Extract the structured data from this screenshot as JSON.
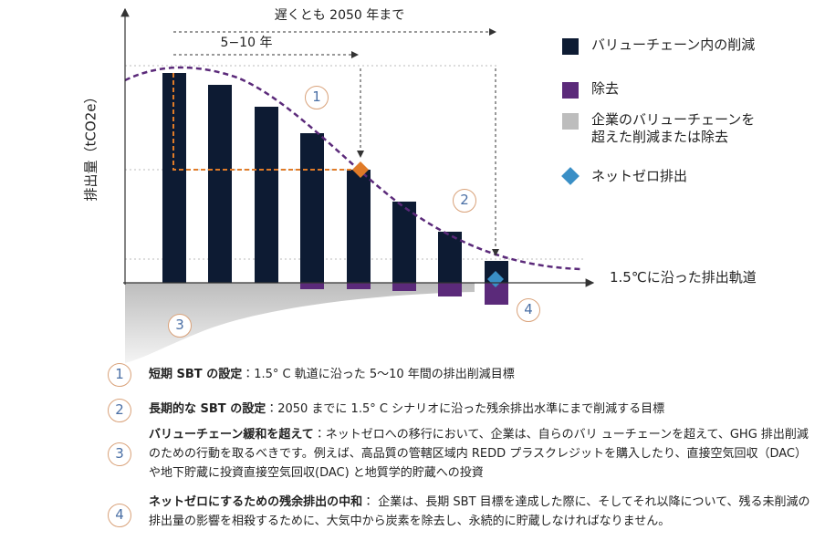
{
  "chart": {
    "y_axis_label": "排出量（tCO2e）",
    "x_axis_label": "1.5℃に沿った排出軌道",
    "annotations": {
      "by_2050": "遅くとも 2050 年まで",
      "five_to_ten": "5−10 年"
    },
    "markers": [
      "1",
      "2",
      "3",
      "4"
    ]
  },
  "legend": [
    {
      "label": "バリューチェーン内の削減"
    },
    {
      "label": "除去"
    },
    {
      "label": "企業のバリューチェーンを超えた削減または除去"
    },
    {
      "label": "ネットゼロ排出"
    }
  ],
  "notes": [
    {
      "number": "1",
      "title": "短期 SBT の設定",
      "text": "：1.5° C 軌道に沿った 5～10 年間の排出削減目標"
    },
    {
      "number": "2",
      "title": "長期的な SBT の設定",
      "text": "：2050 までに 1.5° C シナリオに沿った残余排出水準にまで削減する目標"
    },
    {
      "number": "3",
      "title": "バリューチェーン緩和を超えて",
      "text": "：ネットゼロへの移行において、企業は、自らのバリ ューチェーンを超えて、GHG 排出削減のための行動を取るべきです。例えば、高品質の管轄区域内 REDD プラスクレジットを購入したり、直接空気回収（DAC）や地下貯蔵に投資直接空気回収(DAC) と地質学的貯蔵への投資"
    },
    {
      "number": "4",
      "title": "ネットゼロにするための残余排出の中和",
      "text": "： 企業は、長期 SBT 目標を達成した際に、そしてそれ以降について、残る未削減の排出量の影響を相殺するために、大気中から炭素を除去し、永続的に貯蔵しなければなりません。"
    }
  ]
}
